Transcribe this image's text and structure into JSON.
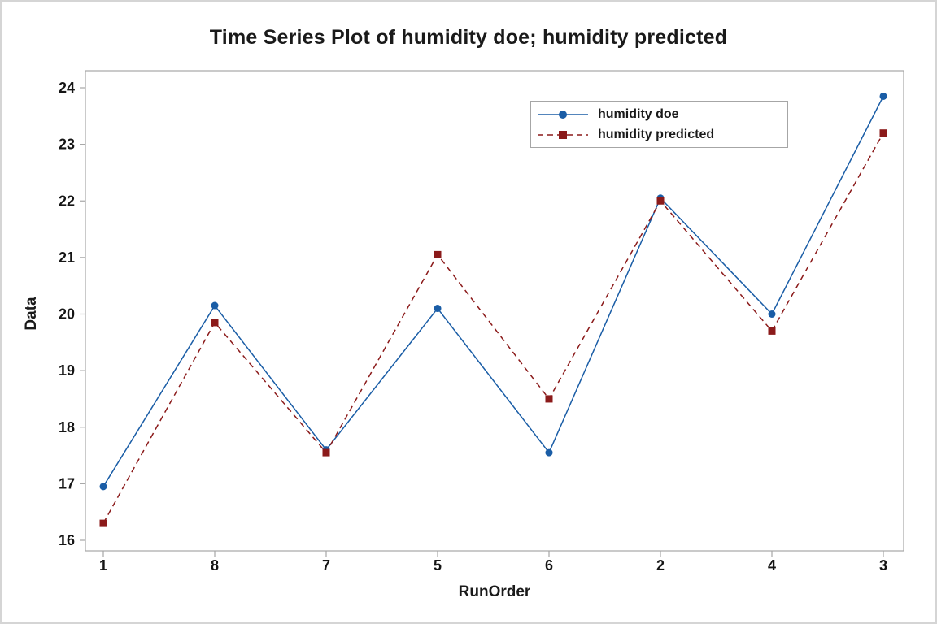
{
  "window": {
    "background": "#ffffff",
    "border_color": "#d5d5d5"
  },
  "chart_data": {
    "type": "line",
    "title": "Time Series Plot of humidity doe; humidity predicted",
    "xlabel": "RunOrder",
    "ylabel": "Data",
    "categories": [
      "1",
      "8",
      "7",
      "5",
      "6",
      "2",
      "4",
      "3"
    ],
    "yticks": [
      24,
      23,
      22,
      21,
      20,
      19,
      18,
      17,
      16
    ],
    "ylim": [
      16,
      24
    ],
    "grid": false,
    "legend_position": "top-right-inside",
    "axis_color": "#a6a6a6",
    "series": [
      {
        "name": "humidity doe",
        "color": "#1a5da6",
        "marker": "circle",
        "line_style": "solid",
        "values": [
          16.95,
          20.15,
          17.6,
          20.1,
          17.55,
          22.05,
          20.0,
          23.85
        ]
      },
      {
        "name": "humidity predicted",
        "color": "#8b1a1a",
        "marker": "square",
        "line_style": "dashed",
        "values": [
          16.3,
          19.85,
          17.55,
          21.05,
          18.5,
          22.0,
          19.7,
          23.2
        ]
      }
    ]
  }
}
